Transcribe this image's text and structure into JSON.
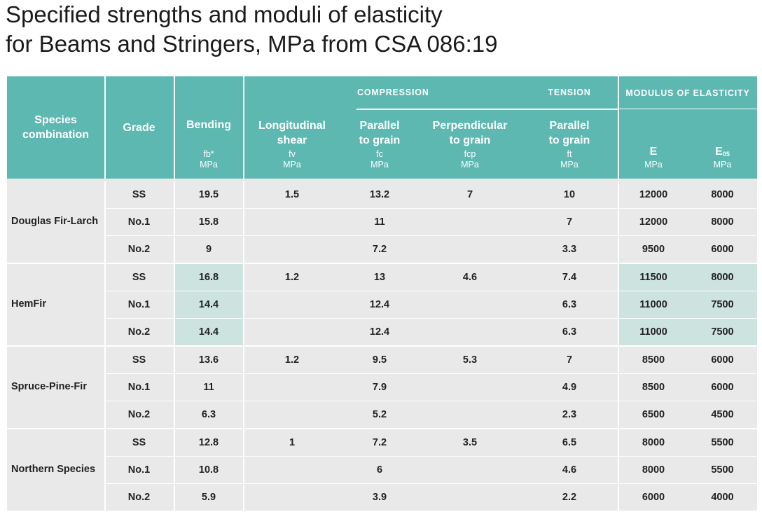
{
  "title": {
    "line1": "Specified strengths and moduli of elasticity",
    "line2": "for Beams and Stringers, MPa from CSA 086:19"
  },
  "header": {
    "species": "Species combination",
    "grade": "Grade",
    "bending": "Bending",
    "bending_sym": "fb*",
    "bending_unit": "MPa",
    "shear": "Longitudinal shear",
    "shear_sym": "fv",
    "shear_unit": "MPa",
    "compression_group": "COMPRESSION",
    "tension_group": "TENSION",
    "modulus_group": "MODULUS OF ELASTICITY",
    "comp_parallel": "Parallel to grain",
    "comp_parallel_sym": "fc",
    "comp_parallel_unit": "MPa",
    "comp_perp": "Perpendicular to grain",
    "comp_perp_sym": "fcp",
    "comp_perp_unit": "MPa",
    "tens_parallel": "Parallel to grain",
    "tens_parallel_sym": "ft",
    "tens_parallel_unit": "MPa",
    "e": "E",
    "e_unit": "MPa",
    "e05": "E",
    "e05_sub": "05",
    "e05_unit": "MPa"
  },
  "groups": [
    {
      "species": "Douglas Fir-Larch",
      "shear": "1.5",
      "perp": "7",
      "rows": [
        {
          "grade": "SS",
          "bending": "19.5",
          "fc": "13.2",
          "ft": "10",
          "e": "12000",
          "e05": "8000"
        },
        {
          "grade": "No.1",
          "bending": "15.8",
          "fc": "11",
          "ft": "7",
          "e": "12000",
          "e05": "8000"
        },
        {
          "grade": "No.2",
          "bending": "9",
          "fc": "7.2",
          "ft": "3.3",
          "e": "9500",
          "e05": "6000"
        }
      ]
    },
    {
      "species": "HemFir",
      "shear": "1.2",
      "perp": "4.6",
      "rows": [
        {
          "grade": "SS",
          "bending": "16.8",
          "fc": "13",
          "ft": "7.4",
          "e": "11500",
          "e05": "8000"
        },
        {
          "grade": "No.1",
          "bending": "14.4",
          "fc": "12.4",
          "ft": "6.3",
          "e": "11000",
          "e05": "7500"
        },
        {
          "grade": "No.2",
          "bending": "14.4",
          "fc": "12.4",
          "ft": "6.3",
          "e": "11000",
          "e05": "7500"
        }
      ]
    },
    {
      "species": "Spruce-Pine-Fir",
      "shear": "1.2",
      "perp": "5.3",
      "rows": [
        {
          "grade": "SS",
          "bending": "13.6",
          "fc": "9.5",
          "ft": "7",
          "e": "8500",
          "e05": "6000"
        },
        {
          "grade": "No.1",
          "bending": "11",
          "fc": "7.9",
          "ft": "4.9",
          "e": "8500",
          "e05": "6000"
        },
        {
          "grade": "No.2",
          "bending": "6.3",
          "fc": "5.2",
          "ft": "2.3",
          "e": "6500",
          "e05": "4500"
        }
      ]
    },
    {
      "species": "Northern Species",
      "shear": "1",
      "perp": "3.5",
      "rows": [
        {
          "grade": "SS",
          "bending": "12.8",
          "fc": "7.2",
          "ft": "6.5",
          "e": "8000",
          "e05": "5500"
        },
        {
          "grade": "No.1",
          "bending": "10.8",
          "fc": "6",
          "ft": "4.6",
          "e": "8000",
          "e05": "5500"
        },
        {
          "grade": "No.2",
          "bending": "5.9",
          "fc": "3.9",
          "ft": "2.2",
          "e": "6000",
          "e05": "4000"
        }
      ]
    }
  ],
  "colors": {
    "header_bg": "#5db8b2",
    "body_bg": "#e9e9e9",
    "highlight": "#cde3e0"
  }
}
